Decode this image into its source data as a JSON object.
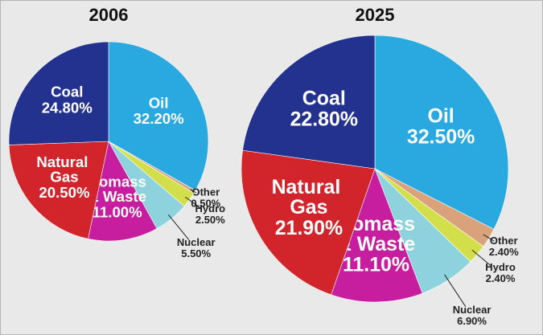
{
  "chart_data": [
    {
      "type": "pie",
      "title": "2006",
      "categories": [
        "Oil",
        "Other",
        "Hydro",
        "Nuclear",
        "Biomass & Waste",
        "Natural Gas",
        "Coal"
      ],
      "values": [
        32.2,
        0.5,
        2.5,
        5.5,
        11.0,
        20.5,
        24.8
      ],
      "value_labels": [
        "32.20%",
        "0.50%",
        "2.50%",
        "5.50%",
        "11.00%",
        "20.50%",
        "24.80%"
      ],
      "colors": [
        "#2aa9e1",
        "#d9a27a",
        "#d3df4a",
        "#8dd2dc",
        "#c71ea0",
        "#d1242b",
        "#23328f"
      ]
    },
    {
      "type": "pie",
      "title": "2025",
      "categories": [
        "Oil",
        "Other",
        "Hydro",
        "Nuclear",
        "Biomass & Waste",
        "Natural Gas",
        "Coal"
      ],
      "values": [
        32.5,
        2.4,
        2.4,
        6.9,
        11.1,
        21.9,
        22.8
      ],
      "value_labels": [
        "32.50%",
        "2.40%",
        "2.40%",
        "6.90%",
        "11.10%",
        "21.90%",
        "22.80%"
      ],
      "colors": [
        "#2aa9e1",
        "#d9a27a",
        "#d3df4a",
        "#8dd2dc",
        "#c71ea0",
        "#d1242b",
        "#23328f"
      ]
    }
  ]
}
